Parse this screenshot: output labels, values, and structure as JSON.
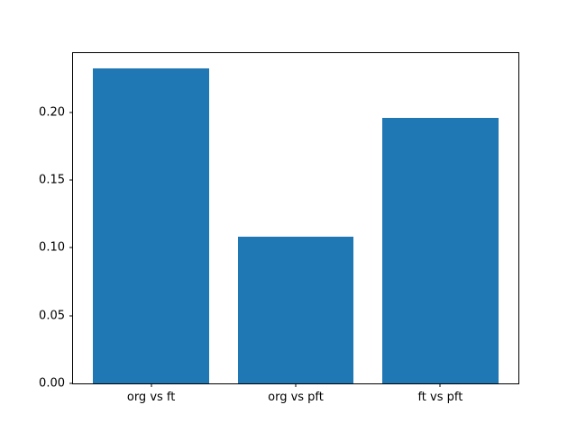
{
  "chart_data": {
    "type": "bar",
    "categories": [
      "org vs ft",
      "org vs pft",
      "ft vs pft"
    ],
    "values": [
      0.232,
      0.108,
      0.196
    ],
    "title": "",
    "xlabel": "",
    "ylabel": "",
    "ylim": [
      0,
      0.2436
    ],
    "x_range": [
      -0.54,
      2.54
    ],
    "bar_width_ratio": 0.8,
    "yticks": [
      0.0,
      0.05,
      0.1,
      0.15,
      0.2
    ],
    "ytick_labels": [
      "0.00",
      "0.05",
      "0.10",
      "0.15",
      "0.20"
    ],
    "bar_color": "#1f77b4",
    "background_color": "#ffffff",
    "spine_color": "#000000",
    "legend": null,
    "grid": false
  }
}
